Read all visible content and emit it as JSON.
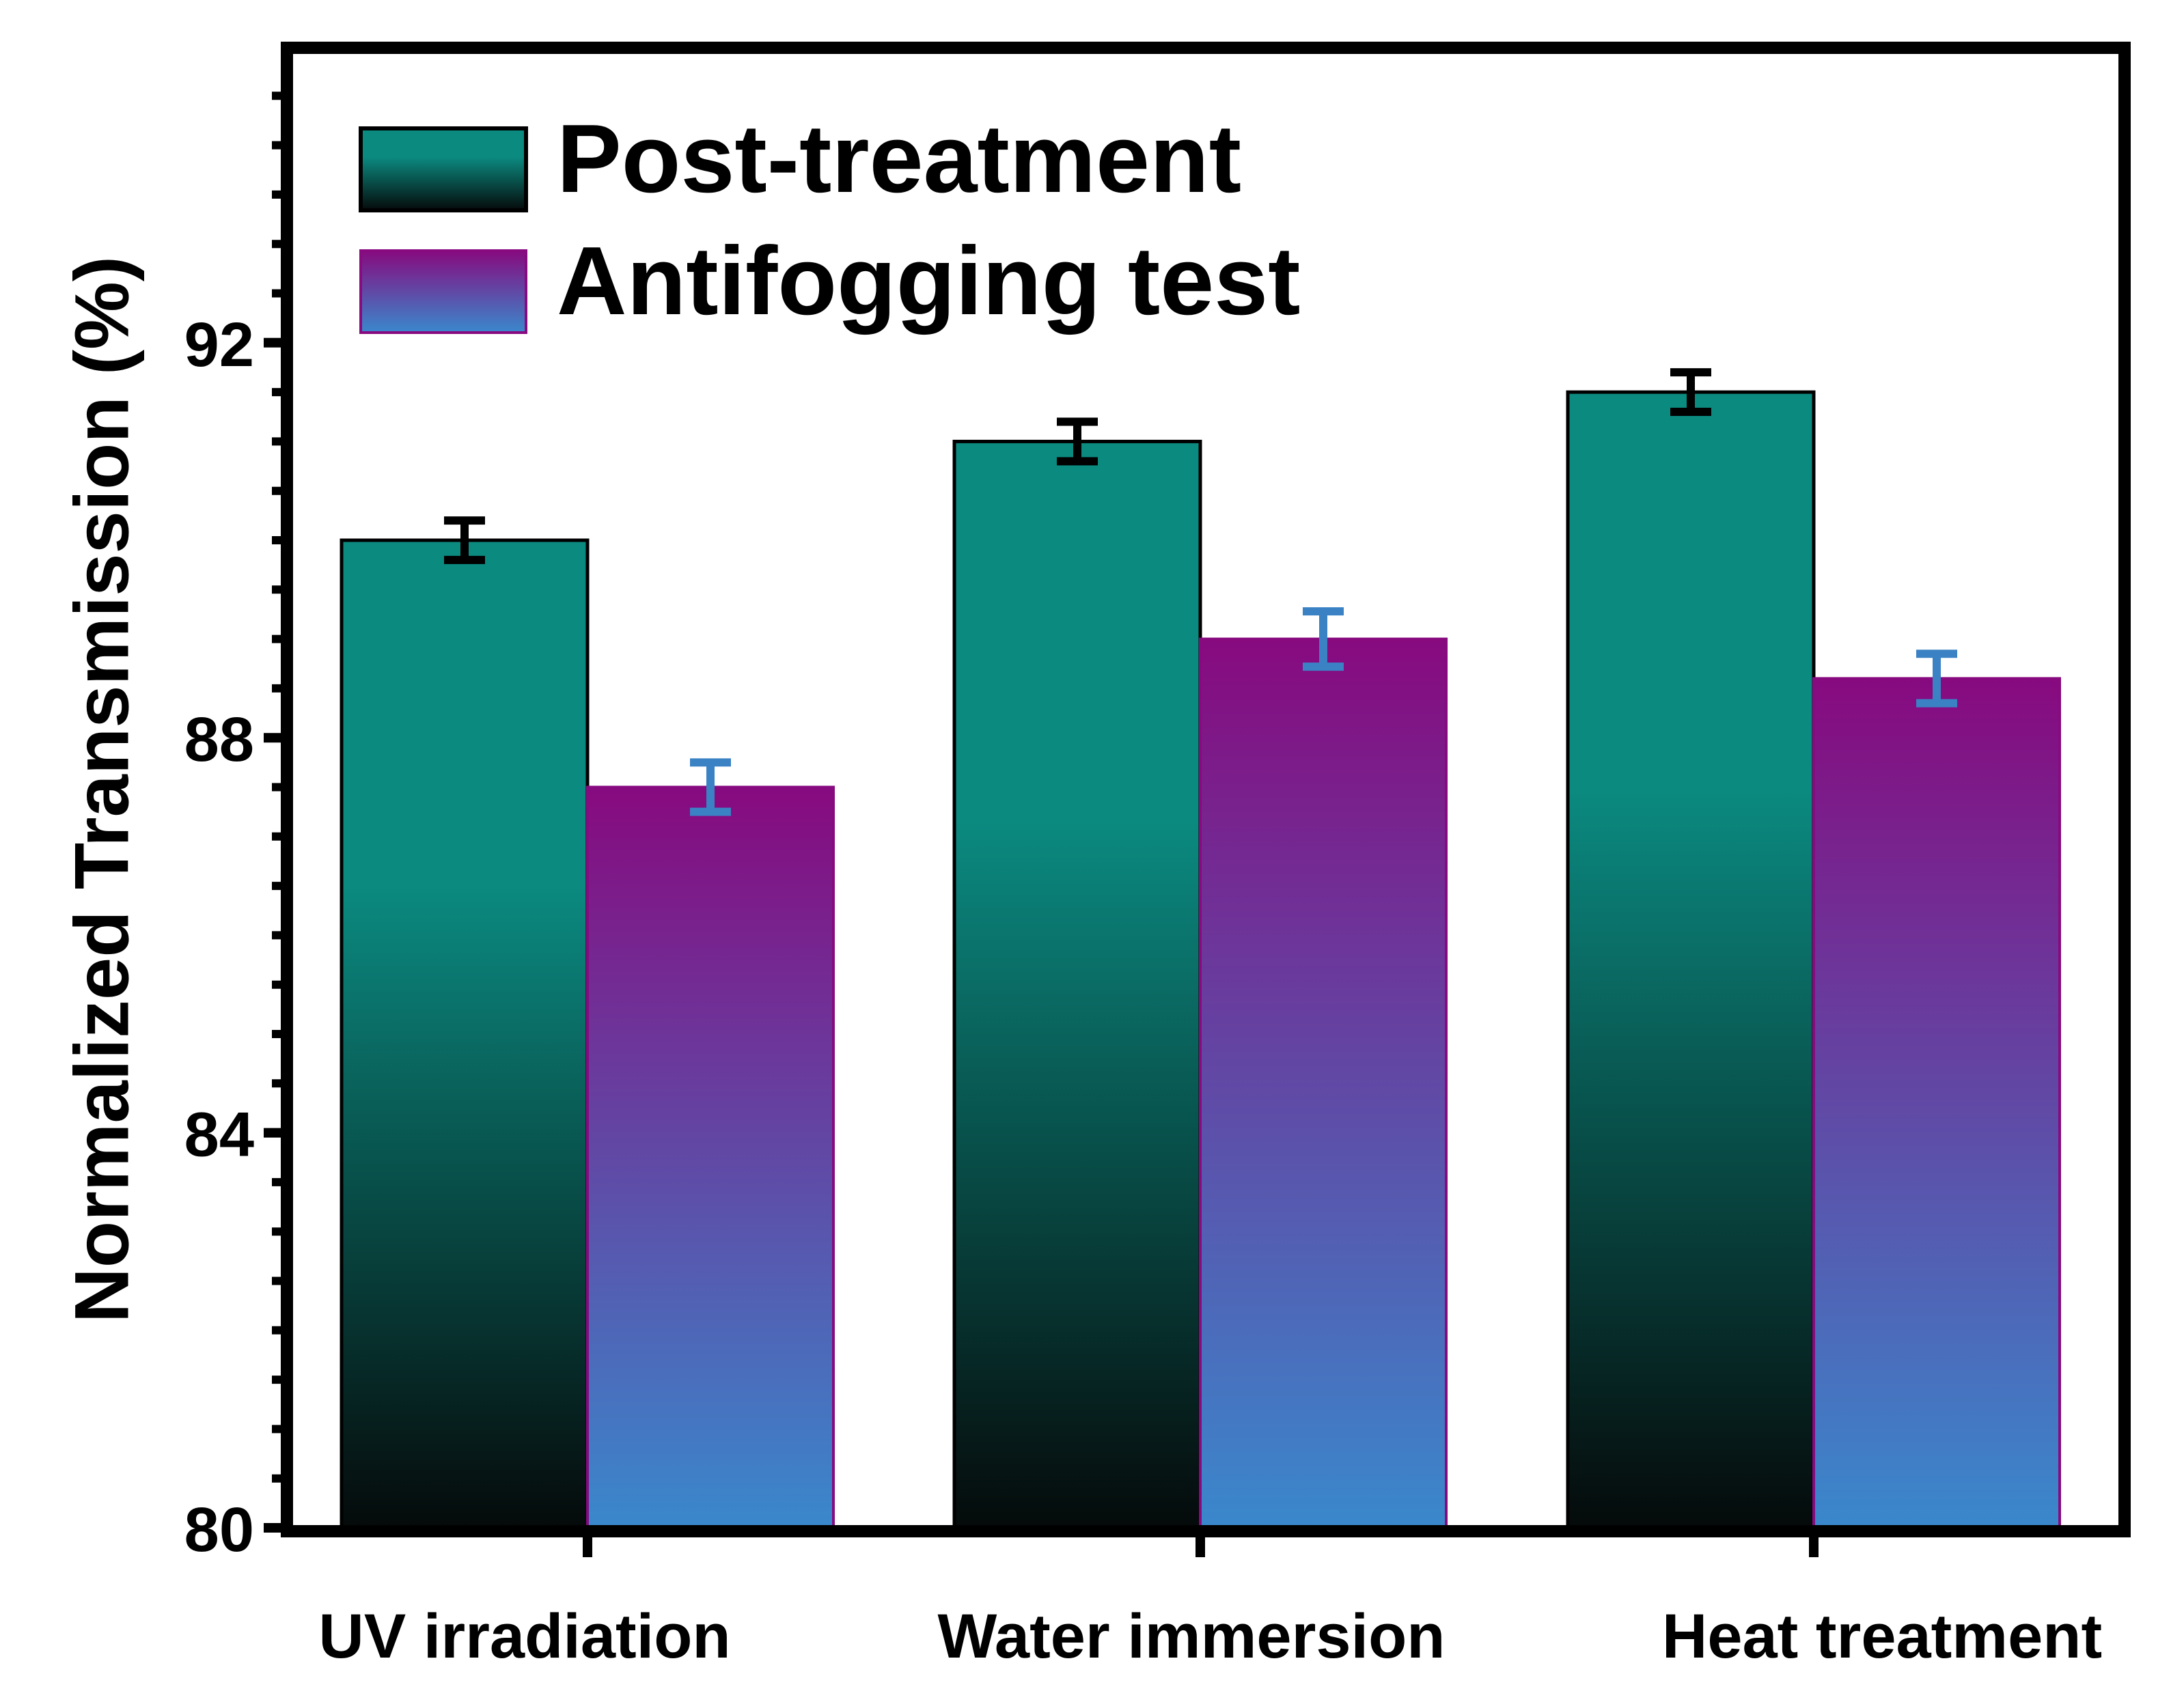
{
  "chart_data": {
    "type": "bar",
    "title": "",
    "xlabel": "",
    "ylabel": "Normalized Transmission (%)",
    "ylim": [
      80,
      94.7
    ],
    "yticks": [
      80,
      84,
      88,
      92
    ],
    "categories": [
      "UV irradiation",
      "Water immersion",
      "Heat treatment"
    ],
    "series": [
      {
        "name": "Post-treatment",
        "values": [
          90.0,
          91.0,
          91.5
        ],
        "errors": [
          0.2,
          0.2,
          0.2
        ],
        "color_top": "#0b8a80",
        "color_bottom": "#050a0a",
        "error_color": "#000000"
      },
      {
        "name": "Antifogging test",
        "values": [
          87.5,
          89.0,
          88.6
        ],
        "errors": [
          0.25,
          0.28,
          0.25
        ],
        "color_top": "#870a7f",
        "color_bottom": "#3a88cc",
        "error_color": "#3b82c4"
      }
    ],
    "legend_position": "top-left"
  }
}
